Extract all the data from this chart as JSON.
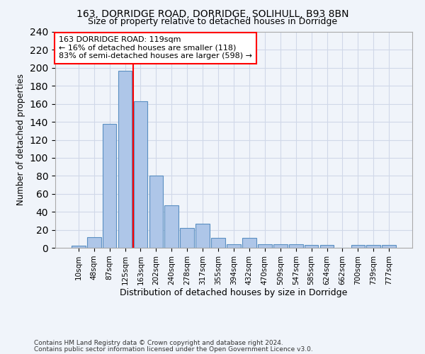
{
  "title1": "163, DORRIDGE ROAD, DORRIDGE, SOLIHULL, B93 8BN",
  "title2": "Size of property relative to detached houses in Dorridge",
  "xlabel": "Distribution of detached houses by size in Dorridge",
  "ylabel": "Number of detached properties",
  "bar_labels": [
    "10sqm",
    "48sqm",
    "87sqm",
    "125sqm",
    "163sqm",
    "202sqm",
    "240sqm",
    "278sqm",
    "317sqm",
    "355sqm",
    "394sqm",
    "432sqm",
    "470sqm",
    "509sqm",
    "547sqm",
    "585sqm",
    "624sqm",
    "662sqm",
    "700sqm",
    "739sqm",
    "777sqm"
  ],
  "bar_values": [
    2,
    12,
    138,
    197,
    163,
    80,
    47,
    22,
    27,
    11,
    4,
    11,
    4,
    4,
    4,
    3,
    3,
    0,
    3,
    3,
    3
  ],
  "bar_color": "#aec6e8",
  "bar_edge_color": "#5a8fc2",
  "grid_color": "#d0d8e8",
  "background_color": "#f0f4fa",
  "vline_x_index": 3.5,
  "vline_color": "red",
  "annotation_text": "163 DORRIDGE ROAD: 119sqm\n← 16% of detached houses are smaller (118)\n83% of semi-detached houses are larger (598) →",
  "annotation_box_color": "white",
  "annotation_box_edge": "red",
  "ylim": [
    0,
    240
  ],
  "yticks": [
    0,
    20,
    40,
    60,
    80,
    100,
    120,
    140,
    160,
    180,
    200,
    220,
    240
  ],
  "footer1": "Contains HM Land Registry data © Crown copyright and database right 2024.",
  "footer2": "Contains public sector information licensed under the Open Government Licence v3.0."
}
